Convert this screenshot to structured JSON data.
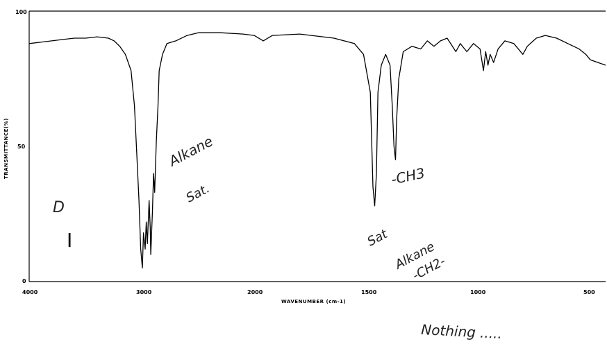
{
  "chart_data": {
    "type": "line",
    "title": "",
    "xlabel": "WAVENUMBER (cm-1)",
    "ylabel": "TRANSMITTANCE(%)",
    "xlim": [
      4000,
      500
    ],
    "ylim": [
      0,
      100
    ],
    "x_ticks": [
      "4000",
      "3000",
      "2000",
      "1500",
      "1000",
      "500"
    ],
    "y_ticks": [
      "100",
      "50",
      "0"
    ],
    "grid": false,
    "series": [
      {
        "points": [
          [
            4000,
            88
          ],
          [
            3900,
            88.5
          ],
          [
            3800,
            89
          ],
          [
            3700,
            89.5
          ],
          [
            3600,
            90
          ],
          [
            3500,
            90
          ],
          [
            3400,
            90.5
          ],
          [
            3300,
            90
          ],
          [
            3250,
            89
          ],
          [
            3200,
            87
          ],
          [
            3150,
            84
          ],
          [
            3100,
            78
          ],
          [
            3070,
            65
          ],
          [
            3050,
            48
          ],
          [
            3030,
            30
          ],
          [
            3015,
            12
          ],
          [
            3000,
            5
          ],
          [
            2990,
            18
          ],
          [
            2975,
            12
          ],
          [
            2965,
            22
          ],
          [
            2955,
            14
          ],
          [
            2940,
            30
          ],
          [
            2930,
            20
          ],
          [
            2925,
            10
          ],
          [
            2910,
            26
          ],
          [
            2900,
            40
          ],
          [
            2890,
            33
          ],
          [
            2875,
            52
          ],
          [
            2860,
            65
          ],
          [
            2850,
            78
          ],
          [
            2820,
            84
          ],
          [
            2780,
            88
          ],
          [
            2700,
            89
          ],
          [
            2600,
            91
          ],
          [
            2500,
            92
          ],
          [
            2300,
            92
          ],
          [
            2100,
            91.5
          ],
          [
            2000,
            91
          ],
          [
            1960,
            89
          ],
          [
            1920,
            91
          ],
          [
            1800,
            91.5
          ],
          [
            1650,
            90
          ],
          [
            1560,
            88
          ],
          [
            1520,
            84
          ],
          [
            1490,
            70
          ],
          [
            1478,
            35
          ],
          [
            1470,
            28
          ],
          [
            1462,
            40
          ],
          [
            1455,
            70
          ],
          [
            1440,
            80
          ],
          [
            1420,
            84
          ],
          [
            1400,
            80
          ],
          [
            1390,
            65
          ],
          [
            1382,
            50
          ],
          [
            1375,
            45
          ],
          [
            1370,
            60
          ],
          [
            1360,
            75
          ],
          [
            1340,
            85
          ],
          [
            1300,
            87
          ],
          [
            1260,
            86
          ],
          [
            1230,
            89
          ],
          [
            1200,
            87
          ],
          [
            1170,
            89
          ],
          [
            1140,
            90
          ],
          [
            1100,
            85
          ],
          [
            1080,
            88
          ],
          [
            1050,
            85
          ],
          [
            1020,
            88
          ],
          [
            990,
            86
          ],
          [
            975,
            78
          ],
          [
            965,
            85
          ],
          [
            955,
            80
          ],
          [
            945,
            84
          ],
          [
            930,
            81
          ],
          [
            910,
            86
          ],
          [
            880,
            89
          ],
          [
            840,
            88
          ],
          [
            820,
            86
          ],
          [
            800,
            84
          ],
          [
            780,
            87
          ],
          [
            740,
            90
          ],
          [
            700,
            91
          ],
          [
            650,
            90
          ],
          [
            600,
            88
          ],
          [
            550,
            86
          ],
          [
            520,
            84
          ],
          [
            500,
            82
          ]
        ]
      }
    ]
  },
  "annotations": {
    "handwritten": {
      "alkane_1": "Alkane",
      "sat_1": "Sat.",
      "ch3": "-CH3",
      "sat_2": "Sat",
      "alkane_2": "Alkane",
      "ch2": "-CH2-",
      "letter_d": "D",
      "nothing": "Nothing ....."
    },
    "label_roman": "I"
  }
}
